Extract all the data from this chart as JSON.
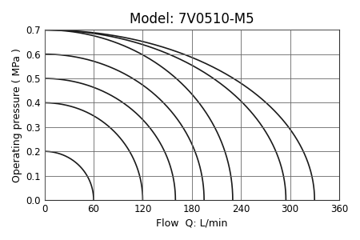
{
  "title": "Model: 7V0510-M5",
  "xlabel": "Flow  Q: L/min",
  "ylabel_text": "Operating pressure ( MPa )",
  "xlim": [
    0,
    360
  ],
  "ylim": [
    0,
    0.7
  ],
  "xticks": [
    0,
    60,
    120,
    180,
    240,
    300,
    360
  ],
  "yticks": [
    0,
    0.1,
    0.2,
    0.3,
    0.4,
    0.5,
    0.6,
    0.7
  ],
  "curves": [
    {
      "max_flow": 60,
      "max_pressure": 0.2
    },
    {
      "max_flow": 120,
      "max_pressure": 0.4
    },
    {
      "max_flow": 160,
      "max_pressure": 0.5
    },
    {
      "max_flow": 195,
      "max_pressure": 0.6
    },
    {
      "max_flow": 230,
      "max_pressure": 0.7
    },
    {
      "max_flow": 295,
      "max_pressure": 0.7
    },
    {
      "max_flow": 330,
      "max_pressure": 0.7
    }
  ],
  "line_color": "#1a1a1a",
  "line_width": 1.2,
  "bg_color": "#ffffff",
  "grid_color": "#666666",
  "title_fontsize": 12,
  "label_fontsize": 9,
  "tick_fontsize": 8.5
}
